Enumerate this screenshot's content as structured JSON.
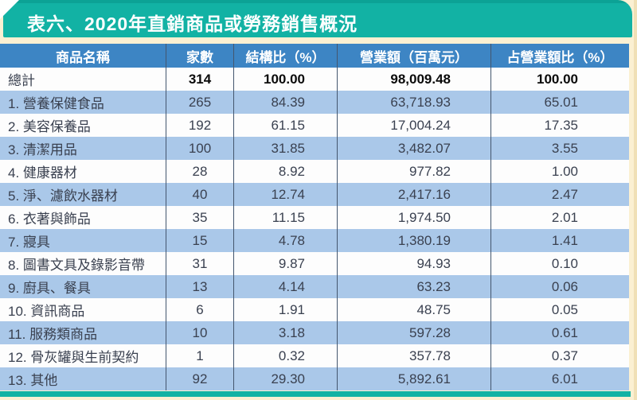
{
  "title": "表六、2020年直銷商品或勞務銷售概況",
  "colors": {
    "banner_teal": "#12b2a4",
    "header_blue": "#3d85c4",
    "row_light_blue": "#aac8e9",
    "row_white": "#fdfdfd",
    "page_cream": "#fbf0d2",
    "separator": "#44566e",
    "header_text": "#ffffff",
    "body_text": "#3a4150"
  },
  "table": {
    "columns": [
      "商品名稱",
      "家數",
      "結構比（%）",
      "營業額（百萬元）",
      "占營業額比（%）"
    ],
    "rows": [
      {
        "name": "總計",
        "count": "314",
        "ratio": "100.00",
        "revenue": "98,009.48",
        "revenue_share": "100.00"
      },
      {
        "name": "1. 營養保健食品",
        "count": "265",
        "ratio": "84.39",
        "revenue": "63,718.93",
        "revenue_share": "65.01"
      },
      {
        "name": "2. 美容保養品",
        "count": "192",
        "ratio": "61.15",
        "revenue": "17,004.24",
        "revenue_share": "17.35"
      },
      {
        "name": "3. 清潔用品",
        "count": "100",
        "ratio": "31.85",
        "revenue": "3,482.07",
        "revenue_share": "3.55"
      },
      {
        "name": "4. 健康器材",
        "count": "28",
        "ratio": "8.92",
        "revenue": "977.82",
        "revenue_share": "1.00"
      },
      {
        "name": "5. 淨、濾飲水器材",
        "count": "40",
        "ratio": "12.74",
        "revenue": "2,417.16",
        "revenue_share": "2.47"
      },
      {
        "name": "6. 衣著與飾品",
        "count": "35",
        "ratio": "11.15",
        "revenue": "1,974.50",
        "revenue_share": "2.01"
      },
      {
        "name": "7. 寢具",
        "count": "15",
        "ratio": "4.78",
        "revenue": "1,380.19",
        "revenue_share": "1.41"
      },
      {
        "name": "8. 圖書文具及錄影音帶",
        "count": "31",
        "ratio": "9.87",
        "revenue": "94.93",
        "revenue_share": "0.10"
      },
      {
        "name": "9. 廚具、餐具",
        "count": "13",
        "ratio": "4.14",
        "revenue": "63.23",
        "revenue_share": "0.06"
      },
      {
        "name": "10. 資訊商品",
        "count": "6",
        "ratio": "1.91",
        "revenue": "48.75",
        "revenue_share": "0.05"
      },
      {
        "name": "11. 服務類商品",
        "count": "10",
        "ratio": "3.18",
        "revenue": "597.28",
        "revenue_share": "0.61"
      },
      {
        "name": "12. 骨灰罐與生前契約",
        "count": "1",
        "ratio": "0.32",
        "revenue": "357.78",
        "revenue_share": "0.37"
      },
      {
        "name": "13. 其他",
        "count": "92",
        "ratio": "29.30",
        "revenue": "5,892.61",
        "revenue_share": "6.01"
      }
    ]
  }
}
